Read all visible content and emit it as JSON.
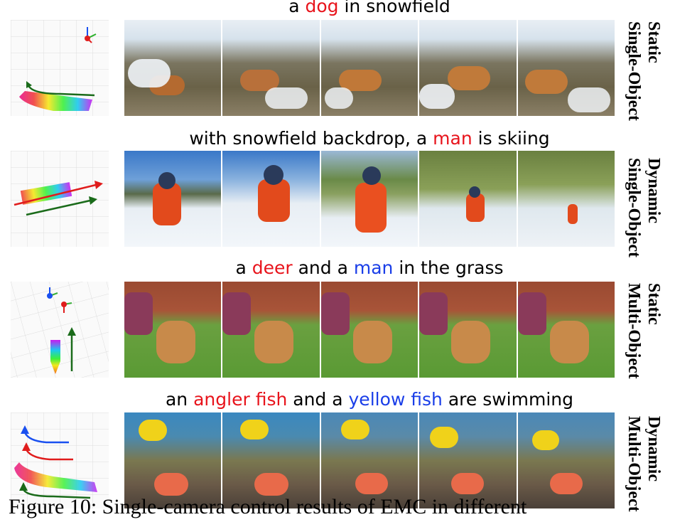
{
  "rows": [
    {
      "caption": [
        {
          "text": "a ",
          "color": "black"
        },
        {
          "text": "dog",
          "color": "red"
        },
        {
          "text": " in snowfield",
          "color": "black"
        }
      ],
      "label": [
        "Static",
        "Single-Object"
      ],
      "scene": "snow-dog"
    },
    {
      "caption": [
        {
          "text": "with snowfield backdrop, a ",
          "color": "black"
        },
        {
          "text": "man",
          "color": "red"
        },
        {
          "text": " is skiing",
          "color": "black"
        }
      ],
      "label": [
        "Dynamic",
        "Single-Object"
      ],
      "scene": "ski-man"
    },
    {
      "caption": [
        {
          "text": "a ",
          "color": "black"
        },
        {
          "text": "deer",
          "color": "red"
        },
        {
          "text": " and a ",
          "color": "black"
        },
        {
          "text": "man",
          "color": "blue"
        },
        {
          "text": " in the grass",
          "color": "black"
        }
      ],
      "label": [
        "Static",
        "Multi-Object"
      ],
      "scene": "deer-man"
    },
    {
      "caption": [
        {
          "text": "an ",
          "color": "black"
        },
        {
          "text": "angler fish",
          "color": "red"
        },
        {
          "text": " and a ",
          "color": "black"
        },
        {
          "text": "yellow fish",
          "color": "blue"
        },
        {
          "text": " are swimming",
          "color": "black"
        }
      ],
      "label": [
        "Dynamic",
        "Multi-Object"
      ],
      "scene": "fish-reef"
    }
  ],
  "figure_caption": "Figure 10: Single-camera control results of EMC in different",
  "colors": {
    "red": "#e8141c",
    "blue": "#1a3ee8",
    "green": "#1a6b1a"
  }
}
